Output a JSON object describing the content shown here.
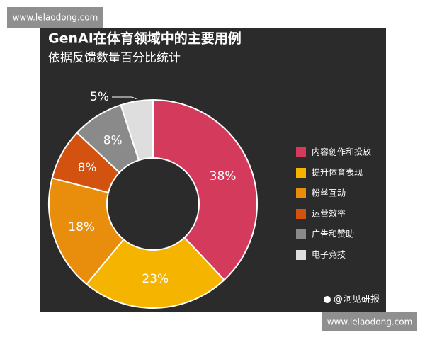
{
  "watermarks": [
    "www.lelaodong.com",
    "www.lelaodong.com"
  ],
  "source": "@洞见研报",
  "chart_data": {
    "type": "donut",
    "title": "GenAI在体育领域中的主要用例",
    "subtitle": "依据反馈数量百分比统计",
    "categories": [
      "内容创作和投放",
      "提升体育表现",
      "粉丝互动",
      "运营效率",
      "广告和赞助",
      "电子竞技"
    ],
    "values": [
      38,
      23,
      18,
      8,
      8,
      5
    ],
    "value_labels": [
      "38%",
      "23%",
      "18%",
      "8%",
      "8%",
      "5%"
    ],
    "colors": [
      "#d43a5b",
      "#f5b400",
      "#e88e0c",
      "#d4520f",
      "#8a8a8a",
      "#dedede"
    ],
    "legend": "right"
  }
}
